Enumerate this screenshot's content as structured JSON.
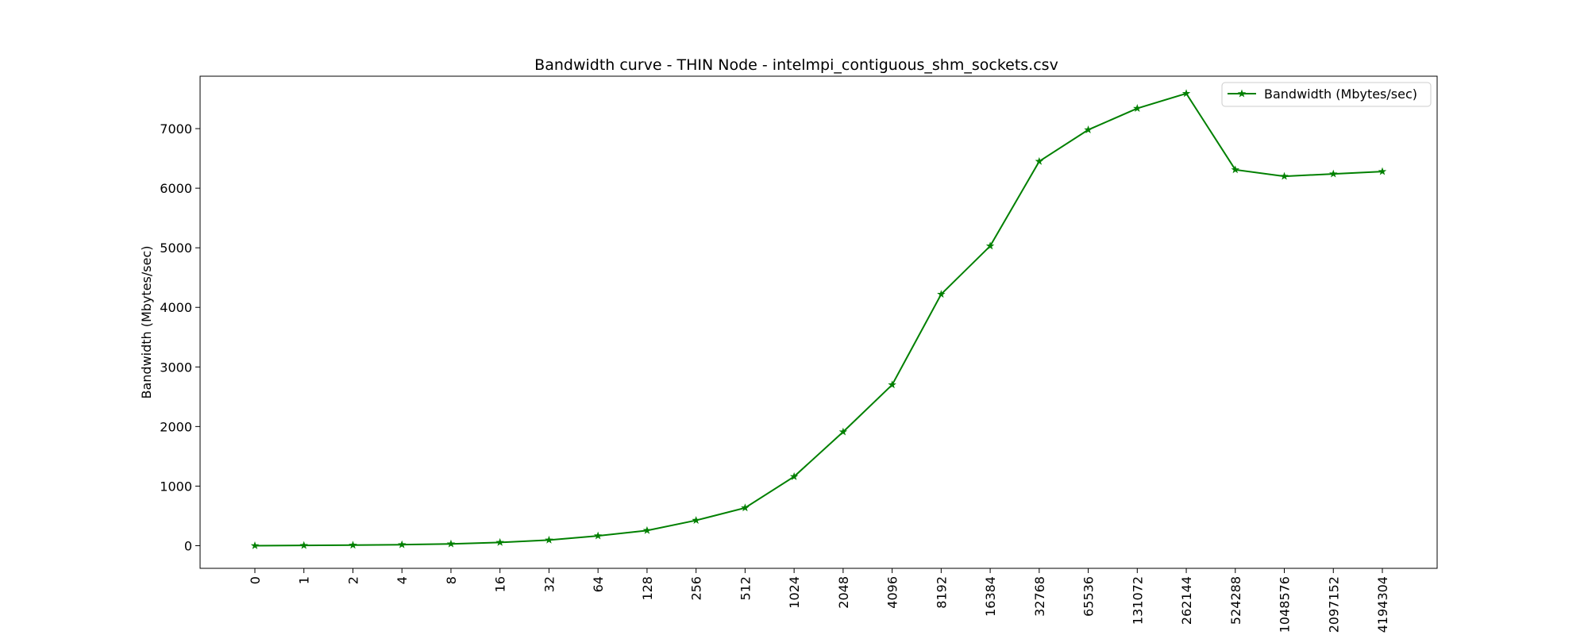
{
  "chart_data": {
    "type": "line",
    "title": "Bandwidth curve - THIN Node - intelmpi_contiguous_shm_sockets.csv",
    "xlabel": "",
    "ylabel": "Bandwidth (Mbytes/sec)",
    "categories": [
      "0",
      "1",
      "2",
      "4",
      "8",
      "16",
      "32",
      "64",
      "128",
      "256",
      "512",
      "1024",
      "2048",
      "4096",
      "8192",
      "16384",
      "32768",
      "65536",
      "131072",
      "262144",
      "524288",
      "1048576",
      "2097152",
      "4194304"
    ],
    "series": [
      {
        "name": "Bandwidth (Mbytes/sec)",
        "color": "#008000",
        "marker": "star",
        "values": [
          0,
          4,
          9,
          17,
          30,
          55,
          95,
          165,
          255,
          425,
          635,
          1160,
          1910,
          2700,
          4220,
          5030,
          6450,
          6980,
          7340,
          7590,
          6310,
          6200,
          6240,
          6280
        ]
      }
    ],
    "ylim": [
      -380,
      7880
    ],
    "yticks": [
      0,
      1000,
      2000,
      3000,
      4000,
      5000,
      6000,
      7000
    ],
    "ytick_labels": [
      "0",
      "1000",
      "2000",
      "3000",
      "4000",
      "5000",
      "6000",
      "7000"
    ],
    "grid": false,
    "legend_position": "upper right"
  }
}
